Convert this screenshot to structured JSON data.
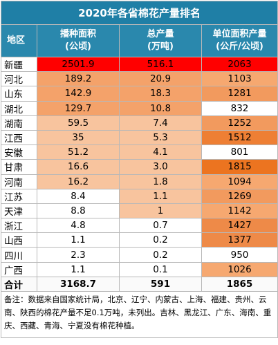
{
  "title": "2020年各省棉花产量排名",
  "headers": {
    "region": "地区",
    "area_line1": "播种面积",
    "area_line2": "(公顷)",
    "output_line1": "总产量",
    "output_line2": "(万吨)",
    "yield_line1": "单位面积产量",
    "yield_line2": "(公斤/公顷)"
  },
  "chart_data": {
    "type": "table",
    "title": "2020年各省棉花产量排名",
    "columns": [
      "地区",
      "播种面积(公顷)",
      "总产量(万吨)",
      "单位面积产量(公斤/公顷)"
    ],
    "rows": [
      {
        "region": "新疆",
        "area": "2501.9",
        "output": "516.1",
        "yield": "2063",
        "c_area": "#ff0000",
        "c_output": "#ff0000",
        "c_yield": "#ff0000"
      },
      {
        "region": "河北",
        "area": "189.2",
        "output": "20.9",
        "yield": "1103",
        "c_area": "#f4a26a",
        "c_output": "#f4a26a",
        "c_yield": "#f6a870"
      },
      {
        "region": "山东",
        "area": "142.9",
        "output": "18.3",
        "yield": "1281",
        "c_area": "#f4a26a",
        "c_output": "#f4a26a",
        "c_yield": "#f29a5e"
      },
      {
        "region": "湖北",
        "area": "129.7",
        "output": "10.8",
        "yield": "832",
        "c_area": "#f4a26a",
        "c_output": "#f4a26a",
        "c_yield": "#ffffff"
      },
      {
        "region": "湖南",
        "area": "59.5",
        "output": "7.4",
        "yield": "1252",
        "c_area": "#f8c49e",
        "c_output": "#f8c49e",
        "c_yield": "#f29a5e"
      },
      {
        "region": "江西",
        "area": "35",
        "output": "5.3",
        "yield": "1512",
        "c_area": "#f8c49e",
        "c_output": "#f8c49e",
        "c_yield": "#ee7f34"
      },
      {
        "region": "安徽",
        "area": "51.2",
        "output": "4.1",
        "yield": "801",
        "c_area": "#f8c49e",
        "c_output": "#f8c49e",
        "c_yield": "#ffffff"
      },
      {
        "region": "甘肃",
        "area": "16.6",
        "output": "3.0",
        "yield": "1815",
        "c_area": "#f8c49e",
        "c_output": "#f8c49e",
        "c_yield": "#ec7420"
      },
      {
        "region": "河南",
        "area": "16.2",
        "output": "1.8",
        "yield": "1094",
        "c_area": "#f8c49e",
        "c_output": "#f8c49e",
        "c_yield": "#f6a870"
      },
      {
        "region": "江苏",
        "area": "8.4",
        "output": "1.1",
        "yield": "1269",
        "c_area": "#ffffff",
        "c_output": "#f8c49e",
        "c_yield": "#f29a5e"
      },
      {
        "region": "天津",
        "area": "8.8",
        "output": "1",
        "yield": "1142",
        "c_area": "#ffffff",
        "c_output": "#f8c49e",
        "c_yield": "#f6a870"
      },
      {
        "region": "浙江",
        "area": "4.8",
        "output": "0.7",
        "yield": "1427",
        "c_area": "#ffffff",
        "c_output": "#ffffff",
        "c_yield": "#ee8a48"
      },
      {
        "region": "山西",
        "area": "1.1",
        "output": "0.2",
        "yield": "1377",
        "c_area": "#ffffff",
        "c_output": "#ffffff",
        "c_yield": "#ee8a48"
      },
      {
        "region": "四川",
        "area": "2.3",
        "output": "0.2",
        "yield": "950",
        "c_area": "#ffffff",
        "c_output": "#ffffff",
        "c_yield": "#ffffff"
      },
      {
        "region": "广西",
        "area": "1.1",
        "output": "0.1",
        "yield": "1026",
        "c_area": "#ffffff",
        "c_output": "#ffffff",
        "c_yield": "#f6a870"
      }
    ],
    "total": {
      "region": "合计",
      "area": "3168.7",
      "output": "591",
      "yield": "1865"
    }
  },
  "note": "备注：数据来自国家统计局，北京、辽宁、内蒙古、上海、福建、贵州、云南、陕西的棉花产量不足0.1万吨，未列出。吉林、黑龙江、广东、海南、重庆、西藏、青海、宁夏没有棉花种植。"
}
